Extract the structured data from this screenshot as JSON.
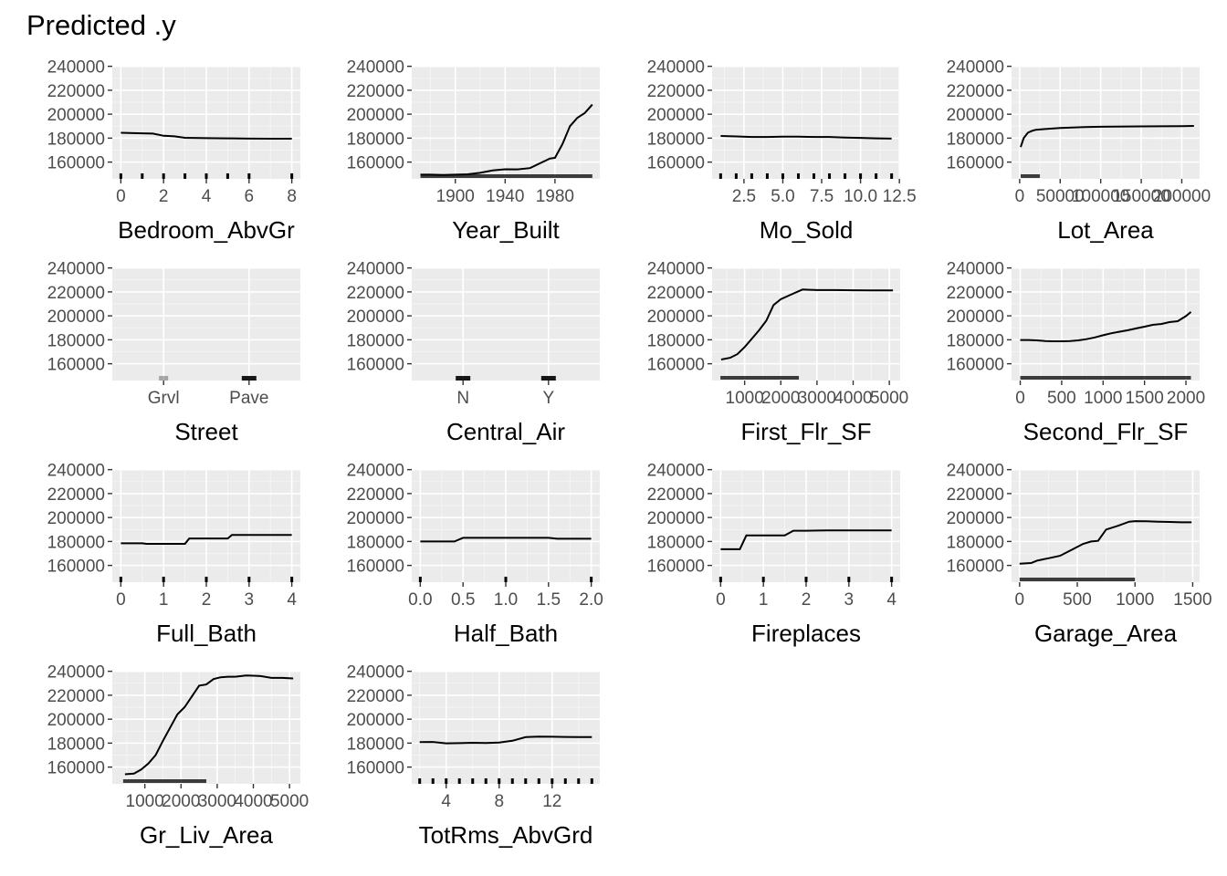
{
  "title": "Predicted .y",
  "chart_data": [
    {
      "type": "line",
      "xlabel": "Bedroom_AbvGr",
      "xlim": [
        -0.4,
        8.4
      ],
      "xticks": [
        0,
        2,
        4,
        6,
        8
      ],
      "xtick_labels": [
        "0",
        "2",
        "4",
        "6",
        "8"
      ],
      "x": [
        0,
        1,
        1.5,
        2,
        2.5,
        3,
        4,
        5,
        6,
        7,
        8
      ],
      "y": [
        184500,
        184000,
        183800,
        182000,
        181500,
        180300,
        180000,
        179800,
        179600,
        179500,
        179500
      ],
      "rug": [
        0,
        1,
        2,
        3,
        4,
        5,
        6,
        8
      ]
    },
    {
      "type": "line",
      "xlabel": "Year_Built",
      "xlim": [
        1865,
        2016
      ],
      "xticks": [
        1900,
        1940,
        1980
      ],
      "xtick_labels": [
        "1900",
        "1940",
        "1980"
      ],
      "x": [
        1872,
        1880,
        1890,
        1900,
        1910,
        1920,
        1930,
        1940,
        1950,
        1960,
        1970,
        1976,
        1980,
        1986,
        1992,
        1998,
        2004,
        2010
      ],
      "y": [
        149500,
        149500,
        149200,
        149500,
        149800,
        151000,
        153000,
        154000,
        153900,
        155000,
        160000,
        163000,
        163500,
        175000,
        190000,
        197000,
        201000,
        208000
      ],
      "rug_range": [
        1872,
        2010
      ]
    },
    {
      "type": "line",
      "xlabel": "Mo_Sold",
      "xlim": [
        0.45,
        12.55
      ],
      "xticks": [
        2.5,
        5,
        7.5,
        10,
        12.5
      ],
      "xtick_labels": [
        "2.5",
        "5.0",
        "7.5",
        "10.0",
        "12.5"
      ],
      "x": [
        1,
        2,
        3,
        4,
        5,
        6,
        7,
        8,
        9,
        10,
        11,
        12
      ],
      "y": [
        181800,
        181400,
        181000,
        181000,
        181200,
        181200,
        181000,
        181000,
        180500,
        180200,
        179800,
        179600
      ],
      "rug": [
        1,
        2,
        3,
        4,
        5,
        6,
        7,
        8,
        9,
        10,
        11,
        12
      ]
    },
    {
      "type": "line",
      "xlabel": "Lot_Area",
      "xlim": [
        -10000,
        222000
      ],
      "xticks": [
        0,
        50000,
        100000,
        150000,
        200000
      ],
      "xtick_labels": [
        "0",
        "50000",
        "100000",
        "150000",
        "200000"
      ],
      "x": [
        1300,
        5000,
        10000,
        15000,
        20000,
        30000,
        50000,
        80000,
        100000,
        150000,
        200000,
        215000
      ],
      "y": [
        172500,
        180000,
        184500,
        186000,
        187000,
        187500,
        188500,
        189200,
        189500,
        189800,
        190000,
        190200
      ],
      "rug_range": [
        1300,
        25000
      ]
    },
    {
      "type": "line",
      "xlabel": "Street",
      "categorical": true,
      "categories": [
        "Grvl",
        "Pave"
      ],
      "x": [],
      "y": [],
      "rug_cat": [
        0,
        1
      ]
    },
    {
      "type": "line",
      "xlabel": "Central_Air",
      "categorical": true,
      "categories": [
        "N",
        "Y"
      ],
      "x": [],
      "y": [],
      "rug_cat": [
        0,
        1
      ]
    },
    {
      "type": "line",
      "xlabel": "First_Flr_SF",
      "xlim": [
        100,
        5300
      ],
      "xticks": [
        1000,
        2000,
        3000,
        4000,
        5000
      ],
      "xtick_labels": [
        "1000",
        "2000",
        "3000",
        "4000",
        "5000"
      ],
      "x": [
        350,
        600,
        800,
        1000,
        1200,
        1400,
        1600,
        1800,
        2000,
        2300,
        2600,
        3000,
        3500,
        4000,
        4500,
        5100
      ],
      "y": [
        163500,
        165000,
        168000,
        174000,
        181000,
        188000,
        196000,
        209000,
        214000,
        218000,
        222000,
        221500,
        221500,
        221400,
        221300,
        221300
      ],
      "rug_range": [
        330,
        2500
      ]
    },
    {
      "type": "line",
      "xlabel": "Second_Flr_SF",
      "xlim": [
        -105,
        2165
      ],
      "xticks": [
        0,
        500,
        1000,
        1500,
        2000
      ],
      "xtick_labels": [
        "0",
        "500",
        "1000",
        "1500",
        "2000"
      ],
      "x": [
        0,
        100,
        200,
        300,
        400,
        500,
        600,
        700,
        800,
        900,
        1000,
        1100,
        1200,
        1300,
        1400,
        1500,
        1600,
        1700,
        1800,
        1900,
        2000,
        2060
      ],
      "y": [
        179800,
        179800,
        179500,
        179000,
        178800,
        178800,
        179000,
        179500,
        180500,
        182000,
        183800,
        185500,
        186800,
        188000,
        189500,
        191000,
        192500,
        193200,
        194800,
        195500,
        199800,
        203200
      ],
      "rug_range": [
        0,
        2060
      ]
    },
    {
      "type": "line",
      "xlabel": "Full_Bath",
      "xlim": [
        -0.2,
        4.2
      ],
      "xticks": [
        0,
        1,
        2,
        3,
        4
      ],
      "xtick_labels": [
        "0",
        "1",
        "2",
        "3",
        "4"
      ],
      "x": [
        0,
        0.5,
        0.6,
        1,
        1.5,
        1.6,
        2,
        2.5,
        2.6,
        3,
        3.5,
        4
      ],
      "y": [
        178500,
        178500,
        178000,
        178000,
        178000,
        182500,
        182500,
        182500,
        185500,
        185500,
        185500,
        185500
      ],
      "rug": [
        0,
        1,
        2,
        3,
        4
      ]
    },
    {
      "type": "line",
      "xlabel": "Half_Bath",
      "xlim": [
        -0.1,
        2.1
      ],
      "xticks": [
        0,
        0.5,
        1,
        1.5,
        2
      ],
      "xtick_labels": [
        "0.0",
        "0.5",
        "1.0",
        "1.5",
        "2.0"
      ],
      "x": [
        0,
        0.4,
        0.5,
        1,
        1.5,
        1.6,
        2
      ],
      "y": [
        180000,
        180000,
        183000,
        183000,
        183000,
        182300,
        182300
      ],
      "rug": [
        0,
        1,
        2
      ]
    },
    {
      "type": "line",
      "xlabel": "Fireplaces",
      "xlim": [
        -0.2,
        4.2
      ],
      "xticks": [
        0,
        1,
        2,
        3,
        4
      ],
      "xtick_labels": [
        "0",
        "1",
        "2",
        "3",
        "4"
      ],
      "x": [
        0,
        0.45,
        0.6,
        1,
        1.5,
        1.7,
        2,
        2.5,
        3,
        3.5,
        4
      ],
      "y": [
        173500,
        173500,
        185000,
        185000,
        185000,
        189000,
        189000,
        189200,
        189200,
        189200,
        189200
      ],
      "rug": [
        0,
        1,
        2,
        3,
        4
      ]
    },
    {
      "type": "line",
      "xlabel": "Garage_Area",
      "xlim": [
        -70,
        1560
      ],
      "xticks": [
        0,
        500,
        1000,
        1500
      ],
      "xtick_labels": [
        "0",
        "500",
        "1000",
        "1500"
      ],
      "x": [
        0,
        100,
        150,
        250,
        350,
        450,
        550,
        620,
        680,
        750,
        850,
        950,
        1000,
        1100,
        1200,
        1300,
        1400,
        1490
      ],
      "y": [
        161500,
        162000,
        164000,
        166000,
        168000,
        173000,
        178000,
        180000,
        180500,
        190000,
        193000,
        196500,
        197000,
        196800,
        196500,
        196300,
        196000,
        196000
      ],
      "rug_range": [
        0,
        1000
      ]
    },
    {
      "type": "line",
      "xlabel": "Gr_Liv_Area",
      "xlim": [
        100,
        5300
      ],
      "xticks": [
        1000,
        2000,
        3000,
        4000,
        5000
      ],
      "xtick_labels": [
        "1000",
        "2000",
        "3000",
        "4000",
        "5000"
      ],
      "x": [
        450,
        700,
        900,
        1100,
        1300,
        1500,
        1700,
        1900,
        2100,
        2300,
        2500,
        2700,
        2900,
        3100,
        3300,
        3500,
        3800,
        4000,
        4200,
        4500,
        4800,
        5100
      ],
      "y": [
        154000,
        154500,
        158000,
        163000,
        170000,
        182000,
        193000,
        204000,
        210000,
        219000,
        228000,
        229000,
        233500,
        235000,
        235500,
        235500,
        236500,
        236300,
        236000,
        234500,
        234500,
        234000
      ],
      "rug_range": [
        400,
        2700
      ]
    },
    {
      "type": "line",
      "xlabel": "TotRms_AbvGrd",
      "xlim": [
        1.4,
        15.6
      ],
      "xticks": [
        4,
        8,
        12
      ],
      "xtick_labels": [
        "4",
        "8",
        "12"
      ],
      "x": [
        2,
        3,
        4,
        5,
        6,
        7,
        8,
        9,
        10,
        11,
        12,
        13,
        14,
        15
      ],
      "y": [
        180800,
        181000,
        179800,
        180000,
        180300,
        180100,
        180500,
        182000,
        185000,
        185500,
        185300,
        185200,
        185000,
        185000
      ],
      "rug": [
        2,
        3,
        4,
        5,
        6,
        7,
        8,
        9,
        10,
        11,
        12,
        13,
        14,
        15
      ]
    }
  ],
  "y_axis": {
    "ylim": [
      146000,
      240500
    ],
    "ticks": [
      160000,
      180000,
      200000,
      220000,
      240000
    ],
    "tick_labels": [
      "160000",
      "180000",
      "200000",
      "220000",
      "240000"
    ]
  }
}
